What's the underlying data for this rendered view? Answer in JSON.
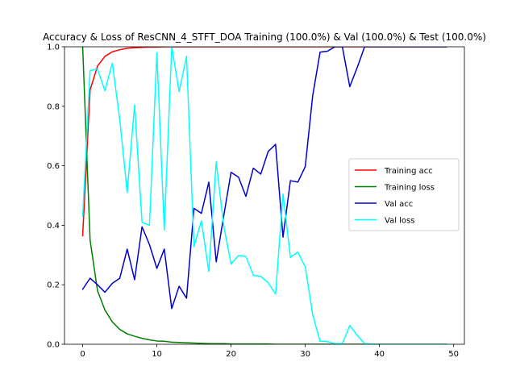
{
  "chart_data": {
    "type": "line",
    "title": "Accuracy & Loss of ResCNN_4_STFT_DOA Training (100.0%) & Val (100.0%) & Test (100.0%)",
    "xlabel": "",
    "ylabel": "",
    "xlim": [
      -2.45,
      51.45
    ],
    "ylim": [
      0,
      1.0
    ],
    "xticks": [
      0,
      10,
      20,
      30,
      40,
      50
    ],
    "yticks": [
      0.0,
      0.2,
      0.4,
      0.6,
      0.8,
      1.0
    ],
    "ytick_labels": [
      "0.0",
      "0.2",
      "0.4",
      "0.6",
      "0.8",
      "1.0"
    ],
    "grid": false,
    "legend_position": "center-right",
    "series": [
      {
        "name": "Training acc",
        "color": "#ff0000",
        "x": [
          0,
          1,
          2,
          3,
          4,
          5,
          6,
          7,
          8,
          9,
          10,
          11,
          12,
          13,
          14,
          15,
          16,
          17,
          18,
          19,
          20,
          21,
          22,
          23,
          24,
          25,
          26,
          27,
          28,
          29,
          30,
          31,
          32,
          33,
          34,
          35,
          36,
          37,
          38,
          39,
          40,
          41,
          42,
          43,
          44,
          45,
          46,
          47,
          48,
          49
        ],
        "values": [
          0.365,
          0.855,
          0.935,
          0.968,
          0.983,
          0.99,
          0.995,
          0.997,
          0.998,
          0.999,
          0.999,
          1.0,
          1.0,
          1.0,
          1.0,
          1.0,
          1.0,
          1.0,
          1.0,
          1.0,
          1.0,
          1.0,
          1.0,
          1.0,
          1.0,
          1.0,
          1.0,
          1.0,
          1.0,
          1.0,
          1.0,
          1.0,
          1.0,
          1.0,
          1.0,
          1.0,
          1.0,
          1.0,
          1.0,
          1.0,
          1.0,
          1.0,
          1.0,
          1.0,
          1.0,
          1.0,
          1.0,
          1.0,
          1.0,
          1.0
        ]
      },
      {
        "name": "Training loss",
        "color": "#008000",
        "x": [
          0,
          1,
          2,
          3,
          4,
          5,
          6,
          7,
          8,
          9,
          10,
          11,
          12,
          13,
          14,
          15,
          16,
          17,
          18,
          19,
          20,
          21,
          22,
          23,
          24,
          25,
          26,
          27,
          28,
          29,
          30,
          31,
          32,
          33,
          34,
          35,
          36,
          37,
          38,
          39,
          40,
          41,
          42,
          43,
          44,
          45,
          46,
          47,
          48,
          49
        ],
        "values": [
          1.0,
          0.35,
          0.18,
          0.115,
          0.075,
          0.05,
          0.035,
          0.027,
          0.02,
          0.015,
          0.011,
          0.01,
          0.007,
          0.006,
          0.005,
          0.004,
          0.003,
          0.002,
          0.002,
          0.002,
          0.001,
          0.001,
          0.001,
          0.001,
          0.001,
          0.001,
          0.0,
          0.0,
          0.0,
          0.0,
          0.0,
          0.0,
          0.0,
          0.0,
          0.0,
          0.0,
          0.0,
          0.0,
          0.0,
          0.0,
          0.0,
          0.0,
          0.0,
          0.0,
          0.0,
          0.0,
          0.0,
          0.0,
          0.0,
          0.0
        ]
      },
      {
        "name": "Val acc",
        "color": "#0000cd",
        "x": [
          0,
          1,
          2,
          3,
          4,
          5,
          6,
          7,
          8,
          9,
          10,
          11,
          12,
          13,
          14,
          15,
          16,
          17,
          18,
          19,
          20,
          21,
          22,
          23,
          24,
          25,
          26,
          27,
          28,
          29,
          30,
          31,
          32,
          33,
          34,
          35,
          36,
          37,
          38,
          39,
          40,
          41,
          42,
          43,
          44,
          45,
          46,
          47,
          48,
          49
        ],
        "values": [
          0.185,
          0.222,
          0.2,
          0.175,
          0.205,
          0.222,
          0.32,
          0.217,
          0.395,
          0.335,
          0.255,
          0.32,
          0.12,
          0.195,
          0.155,
          0.457,
          0.44,
          0.545,
          0.277,
          0.43,
          0.578,
          0.562,
          0.497,
          0.592,
          0.572,
          0.648,
          0.672,
          0.36,
          0.55,
          0.545,
          0.597,
          0.835,
          0.982,
          0.985,
          1.0,
          1.0,
          0.866,
          0.93,
          1.0,
          1.0,
          1.0,
          1.0,
          1.0,
          1.0,
          1.0,
          1.0,
          1.0,
          1.0,
          1.0,
          1.0
        ]
      },
      {
        "name": "Val loss",
        "color": "#00ffff",
        "x": [
          0,
          1,
          2,
          3,
          4,
          5,
          6,
          7,
          8,
          9,
          10,
          11,
          12,
          13,
          14,
          15,
          16,
          17,
          18,
          19,
          20,
          21,
          22,
          23,
          24,
          25,
          26,
          27,
          28,
          29,
          30,
          31,
          32,
          33,
          34,
          35,
          36,
          37,
          38,
          39,
          40,
          41,
          42,
          43,
          44,
          45,
          46,
          47,
          48,
          49
        ],
        "values": [
          0.43,
          0.92,
          0.925,
          0.852,
          0.945,
          0.755,
          0.51,
          0.805,
          0.41,
          0.4,
          0.98,
          0.384,
          1.0,
          0.85,
          0.968,
          0.328,
          0.415,
          0.245,
          0.613,
          0.4,
          0.27,
          0.298,
          0.295,
          0.232,
          0.228,
          0.207,
          0.169,
          0.505,
          0.292,
          0.31,
          0.26,
          0.1,
          0.01,
          0.009,
          0.002,
          0.002,
          0.063,
          0.03,
          0.002,
          0.001,
          0.0,
          0.0,
          0.0,
          0.0,
          0.0,
          0.0,
          0.0,
          0.0,
          0.0,
          0.0
        ]
      }
    ]
  }
}
